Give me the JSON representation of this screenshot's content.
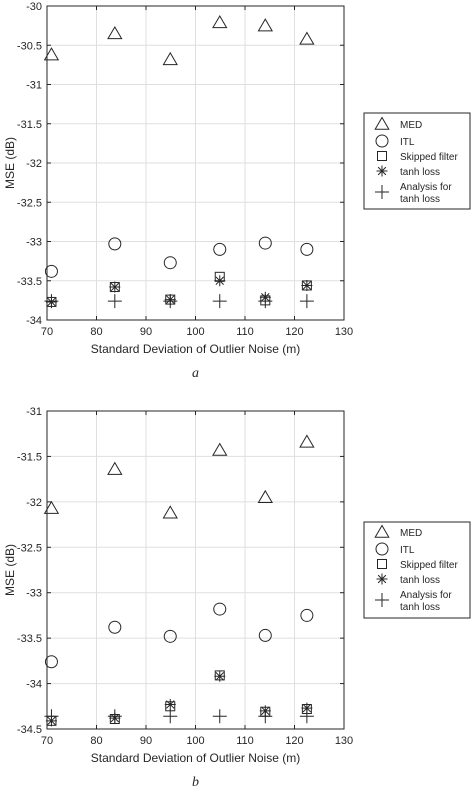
{
  "chart_data": [
    {
      "type": "scatter",
      "panel_label": "a",
      "xlabel": "Standard Deviation of Outlier Noise (m)",
      "ylabel": "MSE (dB)",
      "xlim": [
        70,
        130
      ],
      "ylim": [
        -34,
        -30
      ],
      "xticks": [
        "70",
        "80",
        "90",
        "100",
        "110",
        "120",
        "130"
      ],
      "yticks": [
        "-30",
        "-30.5",
        "-31",
        "-31.5",
        "-32",
        "-32.5",
        "-33",
        "-33.5",
        "-34"
      ],
      "grid": true,
      "legend_position": "right",
      "x": [
        70.9,
        83.7,
        94.9,
        104.9,
        114.1,
        122.5
      ],
      "series": [
        {
          "name": "MED",
          "marker": "triangle",
          "values": [
            -30.62,
            -30.35,
            -30.68,
            -30.21,
            -30.25,
            -30.42
          ]
        },
        {
          "name": "ITL",
          "marker": "circle",
          "values": [
            -33.38,
            -33.03,
            -33.27,
            -33.1,
            -33.02,
            -33.1
          ]
        },
        {
          "name": "Skipped filter",
          "marker": "square",
          "values": [
            -33.77,
            -33.58,
            -33.74,
            -33.45,
            -33.75,
            -33.56
          ]
        },
        {
          "name": "tanh loss",
          "marker": "asterisk",
          "values": [
            -33.77,
            -33.58,
            -33.74,
            -33.5,
            -33.71,
            -33.56
          ]
        },
        {
          "name": "Analysis for\ntanh loss",
          "marker": "plus",
          "values": [
            -33.76,
            -33.76,
            -33.76,
            -33.76,
            -33.76,
            -33.76
          ]
        }
      ]
    },
    {
      "type": "scatter",
      "panel_label": "b",
      "xlabel": "Standard Deviation of Outlier Noise (m)",
      "ylabel": "MSE (dB)",
      "xlim": [
        70,
        130
      ],
      "ylim": [
        -34.5,
        -31
      ],
      "xticks": [
        "70",
        "80",
        "90",
        "100",
        "110",
        "120",
        "130"
      ],
      "yticks": [
        "-31",
        "-31.5",
        "-32",
        "-32.5",
        "-33",
        "-33.5",
        "-34",
        "-34.5"
      ],
      "grid": true,
      "legend_position": "right",
      "x": [
        70.9,
        83.7,
        94.9,
        104.9,
        114.1,
        122.5
      ],
      "series": [
        {
          "name": "MED",
          "marker": "triangle",
          "values": [
            -32.07,
            -31.64,
            -32.12,
            -31.43,
            -31.95,
            -31.34
          ]
        },
        {
          "name": "ITL",
          "marker": "circle",
          "values": [
            -33.76,
            -33.38,
            -33.48,
            -33.18,
            -33.47,
            -33.25
          ]
        },
        {
          "name": "Skipped filter",
          "marker": "square",
          "values": [
            -34.41,
            -34.39,
            -34.25,
            -33.91,
            -34.31,
            -34.28
          ]
        },
        {
          "name": "tanh loss",
          "marker": "asterisk",
          "values": [
            -34.41,
            -34.38,
            -34.23,
            -33.92,
            -34.3,
            -34.27
          ]
        },
        {
          "name": "Analysis for\ntanh loss",
          "marker": "plus",
          "values": [
            -34.36,
            -34.36,
            -34.36,
            -34.36,
            -34.36,
            -34.36
          ]
        }
      ]
    }
  ]
}
